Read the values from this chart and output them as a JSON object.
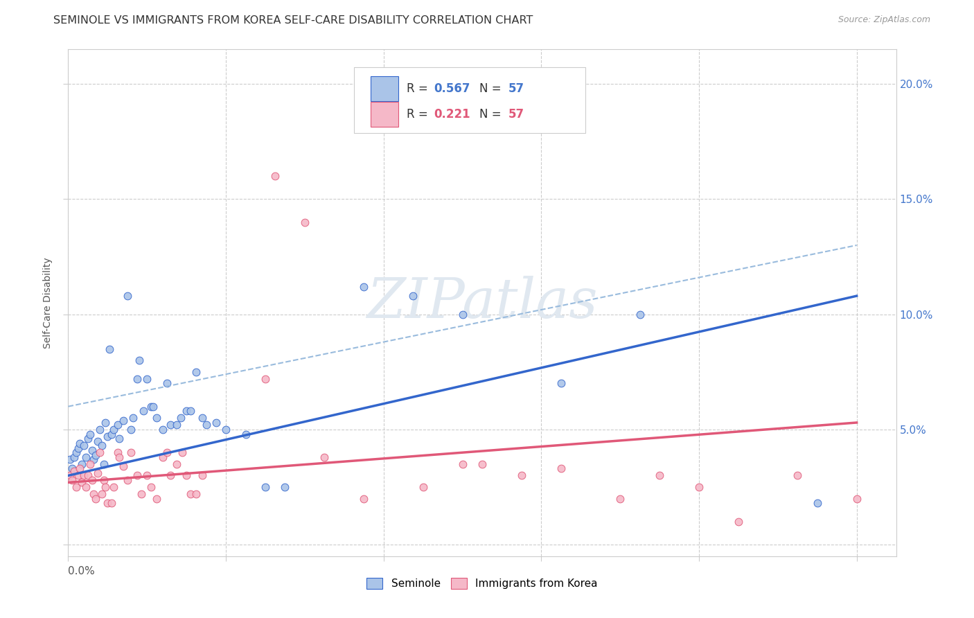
{
  "title": "SEMINOLE VS IMMIGRANTS FROM KOREA SELF-CARE DISABILITY CORRELATION CHART",
  "source": "Source: ZipAtlas.com",
  "ylabel": "Self-Care Disability",
  "xlim": [
    0.0,
    0.42
  ],
  "ylim": [
    -0.005,
    0.215
  ],
  "blue_R": "0.567",
  "blue_N": "57",
  "pink_R": "0.221",
  "pink_N": "57",
  "blue_color": "#aac4e8",
  "pink_color": "#f5b8c8",
  "line_blue": "#3366cc",
  "line_pink": "#e05878",
  "line_gray": "#99bbdd",
  "watermark": "ZIPatlas",
  "blue_scatter": [
    [
      0.001,
      0.037
    ],
    [
      0.002,
      0.033
    ],
    [
      0.003,
      0.038
    ],
    [
      0.004,
      0.04
    ],
    [
      0.005,
      0.042
    ],
    [
      0.006,
      0.044
    ],
    [
      0.007,
      0.035
    ],
    [
      0.008,
      0.043
    ],
    [
      0.009,
      0.038
    ],
    [
      0.01,
      0.046
    ],
    [
      0.011,
      0.048
    ],
    [
      0.012,
      0.041
    ],
    [
      0.013,
      0.037
    ],
    [
      0.014,
      0.039
    ],
    [
      0.015,
      0.045
    ],
    [
      0.016,
      0.05
    ],
    [
      0.017,
      0.043
    ],
    [
      0.018,
      0.035
    ],
    [
      0.019,
      0.053
    ],
    [
      0.02,
      0.047
    ],
    [
      0.021,
      0.085
    ],
    [
      0.022,
      0.048
    ],
    [
      0.023,
      0.05
    ],
    [
      0.025,
      0.052
    ],
    [
      0.026,
      0.046
    ],
    [
      0.028,
      0.054
    ],
    [
      0.03,
      0.108
    ],
    [
      0.032,
      0.05
    ],
    [
      0.033,
      0.055
    ],
    [
      0.035,
      0.072
    ],
    [
      0.036,
      0.08
    ],
    [
      0.038,
      0.058
    ],
    [
      0.04,
      0.072
    ],
    [
      0.042,
      0.06
    ],
    [
      0.043,
      0.06
    ],
    [
      0.045,
      0.055
    ],
    [
      0.048,
      0.05
    ],
    [
      0.05,
      0.07
    ],
    [
      0.052,
      0.052
    ],
    [
      0.055,
      0.052
    ],
    [
      0.057,
      0.055
    ],
    [
      0.06,
      0.058
    ],
    [
      0.062,
      0.058
    ],
    [
      0.065,
      0.075
    ],
    [
      0.068,
      0.055
    ],
    [
      0.07,
      0.052
    ],
    [
      0.075,
      0.053
    ],
    [
      0.08,
      0.05
    ],
    [
      0.09,
      0.048
    ],
    [
      0.1,
      0.025
    ],
    [
      0.11,
      0.025
    ],
    [
      0.15,
      0.112
    ],
    [
      0.175,
      0.108
    ],
    [
      0.2,
      0.1
    ],
    [
      0.25,
      0.07
    ],
    [
      0.29,
      0.1
    ],
    [
      0.38,
      0.018
    ]
  ],
  "pink_scatter": [
    [
      0.001,
      0.03
    ],
    [
      0.002,
      0.028
    ],
    [
      0.003,
      0.032
    ],
    [
      0.004,
      0.025
    ],
    [
      0.005,
      0.03
    ],
    [
      0.006,
      0.033
    ],
    [
      0.007,
      0.027
    ],
    [
      0.008,
      0.03
    ],
    [
      0.009,
      0.025
    ],
    [
      0.01,
      0.03
    ],
    [
      0.011,
      0.035
    ],
    [
      0.012,
      0.028
    ],
    [
      0.013,
      0.022
    ],
    [
      0.014,
      0.02
    ],
    [
      0.015,
      0.031
    ],
    [
      0.016,
      0.04
    ],
    [
      0.017,
      0.022
    ],
    [
      0.018,
      0.028
    ],
    [
      0.019,
      0.025
    ],
    [
      0.02,
      0.018
    ],
    [
      0.022,
      0.018
    ],
    [
      0.023,
      0.025
    ],
    [
      0.025,
      0.04
    ],
    [
      0.026,
      0.038
    ],
    [
      0.028,
      0.034
    ],
    [
      0.03,
      0.028
    ],
    [
      0.032,
      0.04
    ],
    [
      0.035,
      0.03
    ],
    [
      0.037,
      0.022
    ],
    [
      0.04,
      0.03
    ],
    [
      0.042,
      0.025
    ],
    [
      0.045,
      0.02
    ],
    [
      0.048,
      0.038
    ],
    [
      0.05,
      0.04
    ],
    [
      0.052,
      0.03
    ],
    [
      0.055,
      0.035
    ],
    [
      0.058,
      0.04
    ],
    [
      0.06,
      0.03
    ],
    [
      0.062,
      0.022
    ],
    [
      0.065,
      0.022
    ],
    [
      0.068,
      0.03
    ],
    [
      0.1,
      0.072
    ],
    [
      0.105,
      0.16
    ],
    [
      0.12,
      0.14
    ],
    [
      0.13,
      0.038
    ],
    [
      0.15,
      0.02
    ],
    [
      0.18,
      0.025
    ],
    [
      0.2,
      0.035
    ],
    [
      0.21,
      0.035
    ],
    [
      0.23,
      0.03
    ],
    [
      0.25,
      0.033
    ],
    [
      0.28,
      0.02
    ],
    [
      0.3,
      0.03
    ],
    [
      0.32,
      0.025
    ],
    [
      0.34,
      0.01
    ],
    [
      0.37,
      0.03
    ],
    [
      0.4,
      0.02
    ]
  ],
  "blue_line_x": [
    0.0,
    0.4
  ],
  "blue_line_y": [
    0.03,
    0.108
  ],
  "gray_line_x": [
    0.0,
    0.4
  ],
  "gray_line_y": [
    0.06,
    0.13
  ],
  "pink_line_x": [
    0.0,
    0.4
  ],
  "pink_line_y": [
    0.027,
    0.053
  ],
  "yticks": [
    0.0,
    0.05,
    0.1,
    0.15,
    0.2
  ],
  "ytick_labels": [
    "",
    "5.0%",
    "10.0%",
    "15.0%",
    "20.0%"
  ],
  "xticks": [
    0.0,
    0.08,
    0.16,
    0.24,
    0.32,
    0.4
  ],
  "background_color": "#ffffff",
  "title_fontsize": 11.5,
  "axis_color": "#4477cc",
  "grid_color": "#cccccc"
}
